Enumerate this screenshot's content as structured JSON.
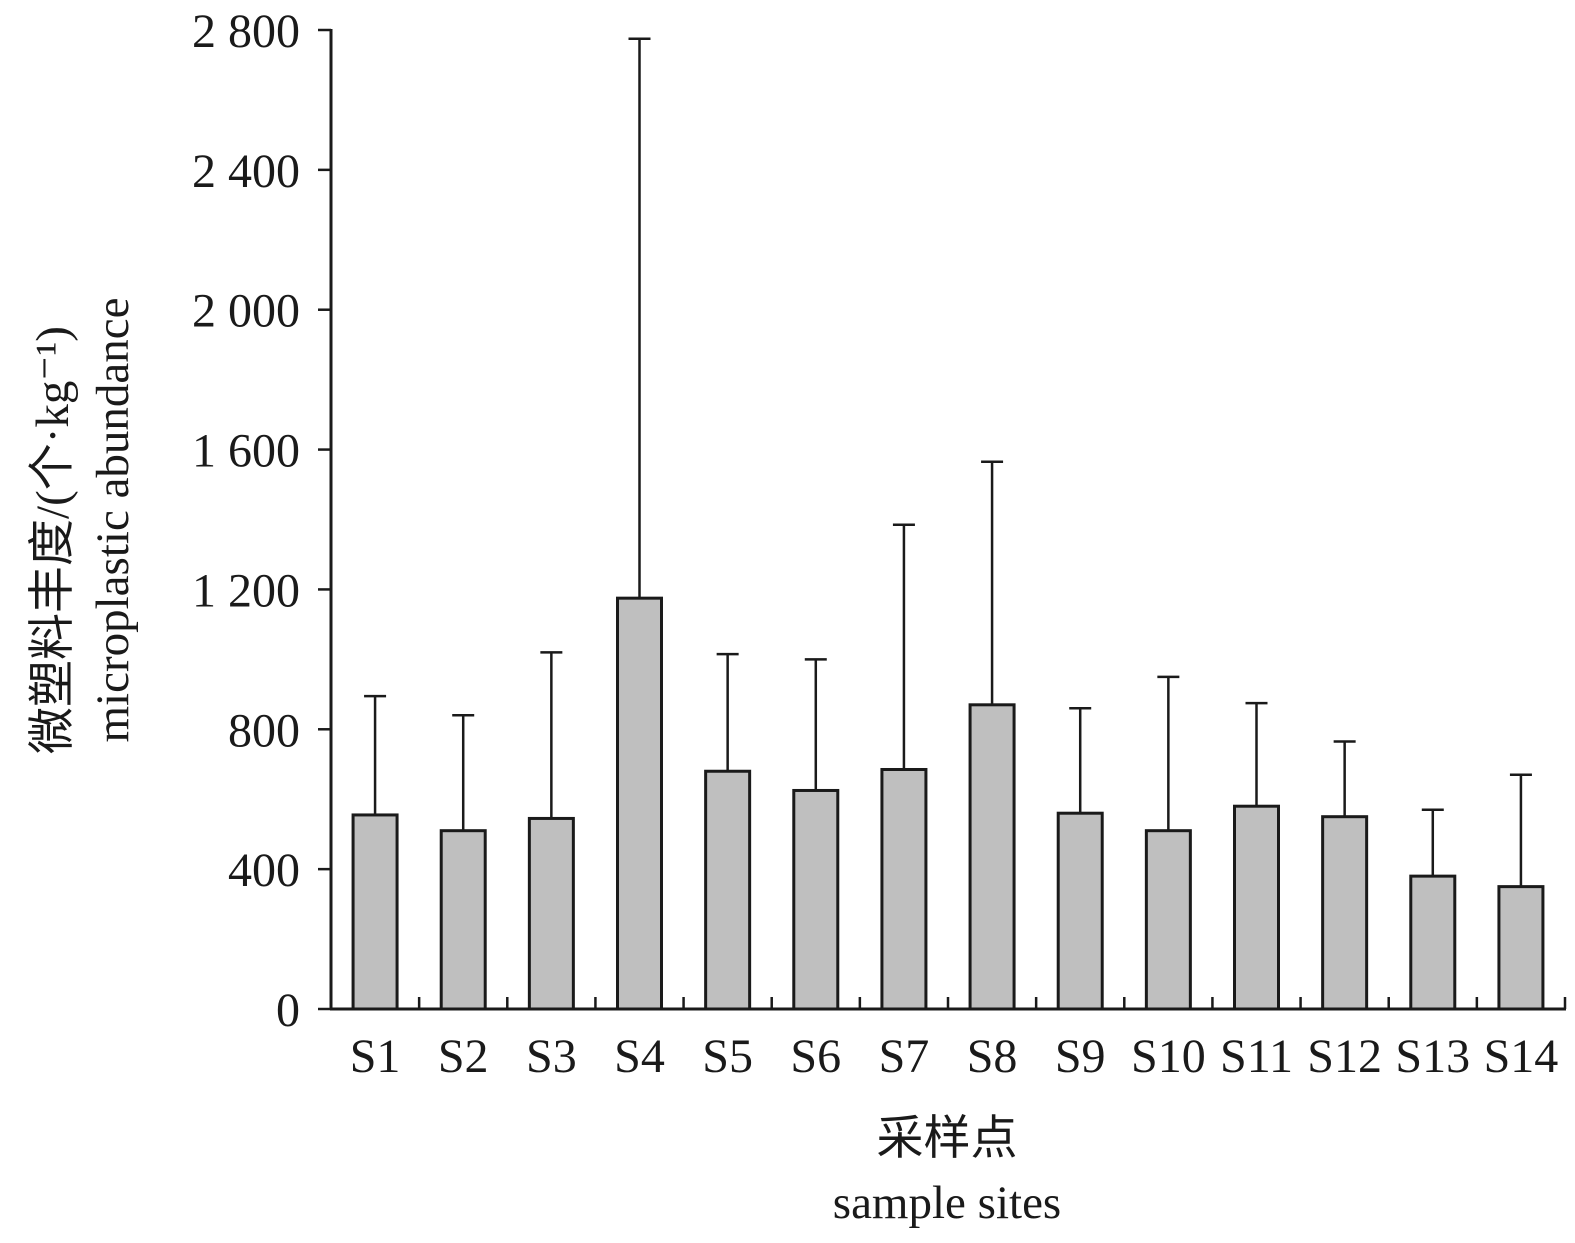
{
  "chart_data": {
    "type": "bar",
    "categories": [
      "S1",
      "S2",
      "S3",
      "S4",
      "S5",
      "S6",
      "S7",
      "S8",
      "S9",
      "S10",
      "S11",
      "S12",
      "S13",
      "S14"
    ],
    "values": [
      555,
      510,
      545,
      1175,
      680,
      625,
      685,
      870,
      560,
      510,
      580,
      550,
      380,
      350
    ],
    "error_plus": [
      340,
      330,
      475,
      1600,
      335,
      375,
      700,
      695,
      300,
      440,
      295,
      215,
      190,
      320
    ],
    "ylim": [
      0,
      2800
    ],
    "yticks": [
      0,
      400,
      800,
      1200,
      1600,
      2000,
      2400,
      2800
    ],
    "ytick_labels": [
      "0",
      "400",
      "800",
      "1 200",
      "1 600",
      "2 000",
      "2 400",
      "2 800"
    ],
    "ylabel_cn": "微塑料丰度/(个·kg⁻¹)",
    "ylabel_en": "microplastic abundance",
    "xlabel_cn": "采样点",
    "xlabel_en": "sample sites",
    "grid": false,
    "legend": "none",
    "bar_color": "#bfbfbf",
    "edge_color": "#1a1a1a"
  }
}
